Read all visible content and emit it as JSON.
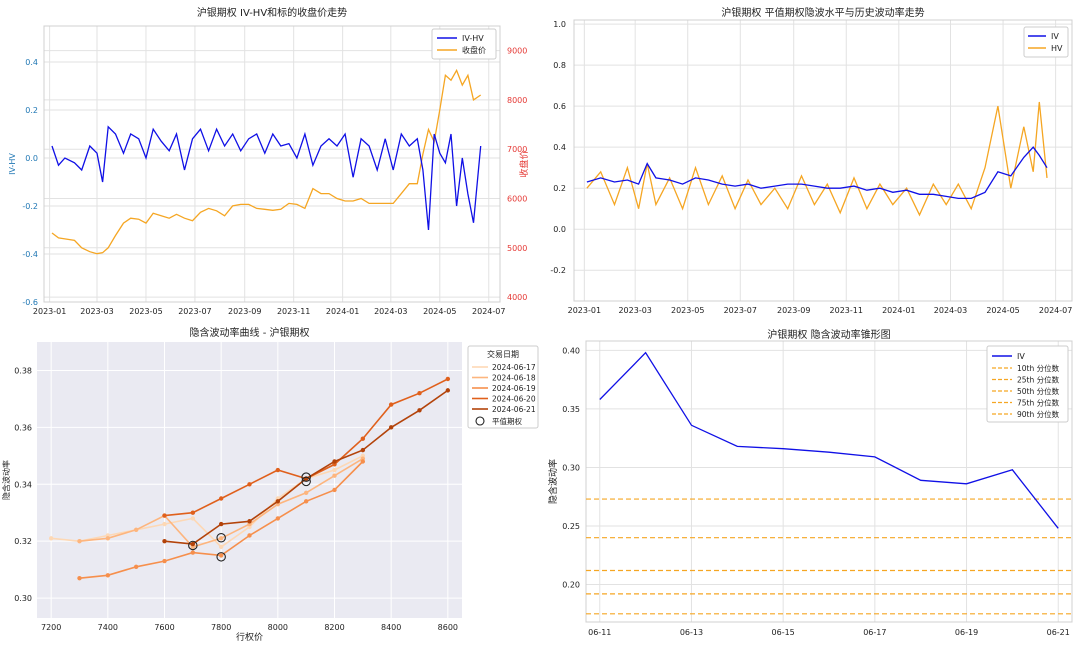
{
  "chart_data": [
    {
      "type": "line",
      "title": "沪银期权 IV-HV和标的收盘价走势",
      "ylabel": "IV-HV",
      "y2label": "收盘价",
      "ylim": [
        -0.6,
        0.55
      ],
      "y2lim": [
        3900,
        9500
      ],
      "xlim": [
        "2022-12-25",
        "2024-07-15"
      ],
      "yticks": [
        -0.6,
        -0.4,
        -0.2,
        0.0,
        0.2,
        0.4
      ],
      "y2ticks": [
        4000,
        5000,
        6000,
        7000,
        8000,
        9000
      ],
      "xticks": [
        "2023-01",
        "2023-03",
        "2023-05",
        "2023-07",
        "2023-09",
        "2023-11",
        "2024-01",
        "2024-03",
        "2024-05",
        "2024-07"
      ],
      "legend": "top-right",
      "grid": true,
      "series": [
        {
          "name": "IV-HV",
          "color": "#1010e6",
          "axis": "left",
          "x": [
            "2023-01-04",
            "2023-01-12",
            "2023-01-20",
            "2023-02-01",
            "2023-02-10",
            "2023-02-20",
            "2023-03-01",
            "2023-03-08",
            "2023-03-15",
            "2023-03-24",
            "2023-04-03",
            "2023-04-12",
            "2023-04-22",
            "2023-05-01",
            "2023-05-10",
            "2023-05-20",
            "2023-05-30",
            "2023-06-08",
            "2023-06-18",
            "2023-06-28",
            "2023-07-08",
            "2023-07-18",
            "2023-07-28",
            "2023-08-07",
            "2023-08-17",
            "2023-08-27",
            "2023-09-06",
            "2023-09-16",
            "2023-09-26",
            "2023-10-06",
            "2023-10-16",
            "2023-10-26",
            "2023-11-05",
            "2023-11-15",
            "2023-11-25",
            "2023-12-05",
            "2023-12-15",
            "2023-12-25",
            "2024-01-04",
            "2024-01-14",
            "2024-01-24",
            "2024-02-03",
            "2024-02-13",
            "2024-02-23",
            "2024-03-04",
            "2024-03-14",
            "2024-03-24",
            "2024-04-03",
            "2024-04-10",
            "2024-04-17",
            "2024-04-24",
            "2024-05-01",
            "2024-05-08",
            "2024-05-15",
            "2024-05-22",
            "2024-05-29",
            "2024-06-05",
            "2024-06-12",
            "2024-06-21"
          ],
          "values": [
            0.05,
            -0.03,
            0.0,
            -0.02,
            -0.05,
            0.05,
            0.02,
            -0.1,
            0.13,
            0.1,
            0.02,
            0.1,
            0.08,
            0.0,
            0.12,
            0.07,
            0.03,
            0.1,
            -0.05,
            0.08,
            0.12,
            0.03,
            0.12,
            0.05,
            0.1,
            0.03,
            0.08,
            0.1,
            0.02,
            0.1,
            0.05,
            0.06,
            0.0,
            0.1,
            -0.03,
            0.05,
            0.08,
            0.05,
            0.1,
            -0.08,
            0.08,
            0.05,
            -0.05,
            0.08,
            -0.05,
            0.1,
            0.05,
            0.08,
            -0.05,
            -0.3,
            0.1,
            0.02,
            -0.02,
            0.1,
            -0.2,
            0.0,
            -0.15,
            -0.27,
            0.05
          ]
        },
        {
          "name": "收盘价",
          "color": "#f5a623",
          "axis": "right",
          "x": [
            "2023-01-04",
            "2023-01-12",
            "2023-01-20",
            "2023-02-01",
            "2023-02-10",
            "2023-02-20",
            "2023-03-01",
            "2023-03-08",
            "2023-03-15",
            "2023-03-24",
            "2023-04-03",
            "2023-04-12",
            "2023-04-22",
            "2023-05-01",
            "2023-05-10",
            "2023-05-20",
            "2023-05-30",
            "2023-06-08",
            "2023-06-18",
            "2023-06-28",
            "2023-07-08",
            "2023-07-18",
            "2023-07-28",
            "2023-08-07",
            "2023-08-17",
            "2023-08-27",
            "2023-09-06",
            "2023-09-16",
            "2023-09-26",
            "2023-10-06",
            "2023-10-16",
            "2023-10-26",
            "2023-11-05",
            "2023-11-15",
            "2023-11-25",
            "2023-12-05",
            "2023-12-15",
            "2023-12-25",
            "2024-01-04",
            "2024-01-14",
            "2024-01-24",
            "2024-02-03",
            "2024-02-13",
            "2024-02-23",
            "2024-03-04",
            "2024-03-14",
            "2024-03-24",
            "2024-04-03",
            "2024-04-10",
            "2024-04-17",
            "2024-04-24",
            "2024-05-01",
            "2024-05-08",
            "2024-05-15",
            "2024-05-22",
            "2024-05-29",
            "2024-06-05",
            "2024-06-12",
            "2024-06-21"
          ],
          "values": [
            5300,
            5200,
            5180,
            5150,
            5000,
            4920,
            4880,
            4900,
            5000,
            5250,
            5500,
            5600,
            5580,
            5500,
            5700,
            5650,
            5600,
            5680,
            5600,
            5550,
            5720,
            5800,
            5750,
            5650,
            5850,
            5880,
            5880,
            5800,
            5780,
            5760,
            5780,
            5900,
            5880,
            5800,
            6200,
            6100,
            6100,
            6000,
            5950,
            5950,
            6000,
            5900,
            5900,
            5900,
            5900,
            6100,
            6300,
            6300,
            6900,
            7400,
            7150,
            7800,
            8500,
            8400,
            8600,
            8300,
            8500,
            8000,
            8100
          ]
        }
      ]
    },
    {
      "type": "line",
      "title": "沪银期权 平值期权隐波水平与历史波动率走势",
      "ylim": [
        -0.35,
        1.02
      ],
      "xlim": [
        "2022-12-20",
        "2024-07-20"
      ],
      "yticks": [
        -0.2,
        0.0,
        0.2,
        0.4,
        0.6,
        0.8,
        1.0
      ],
      "xticks": [
        "2023-01",
        "2023-03",
        "2023-05",
        "2023-07",
        "2023-09",
        "2023-11",
        "2024-01",
        "2024-03",
        "2024-05",
        "2024-07"
      ],
      "legend": "top-right",
      "grid": true,
      "series": [
        {
          "name": "IV",
          "color": "#1010e6",
          "x": [
            "2023-01-04",
            "2023-01-20",
            "2023-02-05",
            "2023-02-20",
            "2023-03-05",
            "2023-03-15",
            "2023-03-25",
            "2023-04-10",
            "2023-04-25",
            "2023-05-10",
            "2023-05-25",
            "2023-06-10",
            "2023-06-25",
            "2023-07-10",
            "2023-07-25",
            "2023-08-10",
            "2023-08-25",
            "2023-09-10",
            "2023-09-25",
            "2023-10-10",
            "2023-10-25",
            "2023-11-10",
            "2023-11-25",
            "2023-12-10",
            "2023-12-25",
            "2024-01-10",
            "2024-01-25",
            "2024-02-10",
            "2024-02-25",
            "2024-03-10",
            "2024-03-25",
            "2024-04-10",
            "2024-04-25",
            "2024-05-10",
            "2024-05-25",
            "2024-06-05",
            "2024-06-12",
            "2024-06-21"
          ],
          "values": [
            0.23,
            0.25,
            0.23,
            0.24,
            0.22,
            0.32,
            0.25,
            0.24,
            0.22,
            0.25,
            0.24,
            0.22,
            0.21,
            0.22,
            0.2,
            0.21,
            0.22,
            0.22,
            0.21,
            0.2,
            0.2,
            0.21,
            0.19,
            0.2,
            0.18,
            0.19,
            0.17,
            0.17,
            0.16,
            0.15,
            0.15,
            0.18,
            0.28,
            0.26,
            0.35,
            0.4,
            0.36,
            0.3
          ]
        },
        {
          "name": "HV",
          "color": "#f5a623",
          "x": [
            "2023-01-04",
            "2023-01-20",
            "2023-02-05",
            "2023-02-20",
            "2023-03-05",
            "2023-03-15",
            "2023-03-25",
            "2023-04-10",
            "2023-04-25",
            "2023-05-10",
            "2023-05-25",
            "2023-06-10",
            "2023-06-25",
            "2023-07-10",
            "2023-07-25",
            "2023-08-10",
            "2023-08-25",
            "2023-09-10",
            "2023-09-25",
            "2023-10-10",
            "2023-10-25",
            "2023-11-10",
            "2023-11-25",
            "2023-12-10",
            "2023-12-25",
            "2024-01-10",
            "2024-01-25",
            "2024-02-10",
            "2024-02-25",
            "2024-03-10",
            "2024-03-25",
            "2024-04-10",
            "2024-04-25",
            "2024-05-10",
            "2024-05-25",
            "2024-06-05",
            "2024-06-12",
            "2024-06-21"
          ],
          "values": [
            0.2,
            0.28,
            0.12,
            0.3,
            0.1,
            0.32,
            0.12,
            0.25,
            0.1,
            0.3,
            0.12,
            0.26,
            0.1,
            0.24,
            0.12,
            0.2,
            0.1,
            0.26,
            0.12,
            0.22,
            0.08,
            0.25,
            0.1,
            0.22,
            0.12,
            0.2,
            0.07,
            0.22,
            0.12,
            0.22,
            0.1,
            0.3,
            0.6,
            0.2,
            0.5,
            0.28,
            0.62,
            0.25
          ]
        }
      ]
    },
    {
      "type": "line",
      "title": "隐含波动率曲线 - 沪银期权",
      "xlabel": "行权价",
      "ylabel": "隐含波动率",
      "xlim": [
        7150,
        8650
      ],
      "ylim": [
        0.293,
        0.39
      ],
      "xticks": [
        7200,
        7400,
        7600,
        7800,
        8000,
        8200,
        8400,
        8600
      ],
      "yticks": [
        0.3,
        0.32,
        0.34,
        0.36,
        0.38
      ],
      "legend_title": "交易日期",
      "legend": "top-right",
      "grid": true,
      "series": [
        {
          "name": "2024-06-17",
          "color": "#fdd8b5",
          "x": [
            7200,
            7300,
            7400,
            7500,
            7600,
            7700,
            7800,
            7900,
            8000,
            8100,
            8200,
            8300
          ],
          "values": [
            0.321,
            0.32,
            0.322,
            0.324,
            0.326,
            0.328,
            0.318,
            0.325,
            0.335,
            0.342,
            0.345,
            0.35
          ]
        },
        {
          "name": "2024-06-18",
          "color": "#fdb57e",
          "x": [
            7300,
            7400,
            7500,
            7600,
            7700,
            7800,
            7900,
            8000,
            8100,
            8200,
            8300
          ],
          "values": [
            0.32,
            0.321,
            0.324,
            0.329,
            0.318,
            0.321,
            0.326,
            0.333,
            0.337,
            0.343,
            0.349
          ]
        },
        {
          "name": "2024-06-19",
          "color": "#f68f4c",
          "x": [
            7300,
            7400,
            7500,
            7600,
            7700,
            7800,
            7900,
            8000,
            8100,
            8200,
            8300
          ],
          "values": [
            0.307,
            0.308,
            0.311,
            0.313,
            0.316,
            0.315,
            0.322,
            0.328,
            0.334,
            0.338,
            0.348
          ]
        },
        {
          "name": "2024-06-20",
          "color": "#e0601c",
          "x": [
            7600,
            7700,
            7800,
            7900,
            8000,
            8100,
            8200,
            8300,
            8400,
            8500,
            8600
          ],
          "values": [
            0.329,
            0.33,
            0.335,
            0.34,
            0.345,
            0.342,
            0.347,
            0.356,
            0.368,
            0.372,
            0.377
          ]
        },
        {
          "name": "2024-06-21",
          "color": "#b3430a",
          "x": [
            7600,
            7700,
            7800,
            7900,
            8000,
            8100,
            8200,
            8300,
            8400,
            8500,
            8600
          ],
          "values": [
            0.32,
            0.319,
            0.326,
            0.327,
            0.334,
            0.342,
            0.348,
            0.352,
            0.36,
            0.366,
            0.373
          ]
        }
      ],
      "atm_label": "平值期权",
      "atm_points": [
        {
          "x": 7700,
          "y": 0.3185
        },
        {
          "x": 7800,
          "y": 0.3145
        },
        {
          "x": 7800,
          "y": 0.3212
        },
        {
          "x": 8100,
          "y": 0.3425
        },
        {
          "x": 8100,
          "y": 0.341
        }
      ]
    },
    {
      "type": "line",
      "title": "沪银期权 隐含波动率锥形图",
      "ylabel": "隐含波动率",
      "xlim": [
        -0.3,
        10.3
      ],
      "ylim": [
        0.168,
        0.408
      ],
      "yticks": [
        0.2,
        0.25,
        0.3,
        0.35,
        0.4
      ],
      "xticks": [
        "06-11",
        "06-13",
        "06-15",
        "06-17",
        "06-19",
        "06-21"
      ],
      "xtick_positions": [
        0,
        2,
        4,
        6,
        8,
        10
      ],
      "legend": "top-right",
      "grid": true,
      "series": [
        {
          "name": "IV",
          "color": "#1010e6",
          "x": [
            0,
            1,
            2,
            3,
            4,
            5,
            6,
            7,
            8,
            9,
            10
          ],
          "values": [
            0.358,
            0.398,
            0.336,
            0.318,
            0.316,
            0.313,
            0.309,
            0.289,
            0.286,
            0.298,
            0.248
          ]
        }
      ],
      "percentiles": [
        {
          "name": "10th 分位数",
          "value": 0.175,
          "color": "#f5a623"
        },
        {
          "name": "25th 分位数",
          "value": 0.192,
          "color": "#f5a623"
        },
        {
          "name": "50th 分位数",
          "value": 0.212,
          "color": "#f5a623"
        },
        {
          "name": "75th 分位数",
          "value": 0.24,
          "color": "#f5a623"
        },
        {
          "name": "90th 分位数",
          "value": 0.273,
          "color": "#f5a623"
        }
      ]
    }
  ]
}
